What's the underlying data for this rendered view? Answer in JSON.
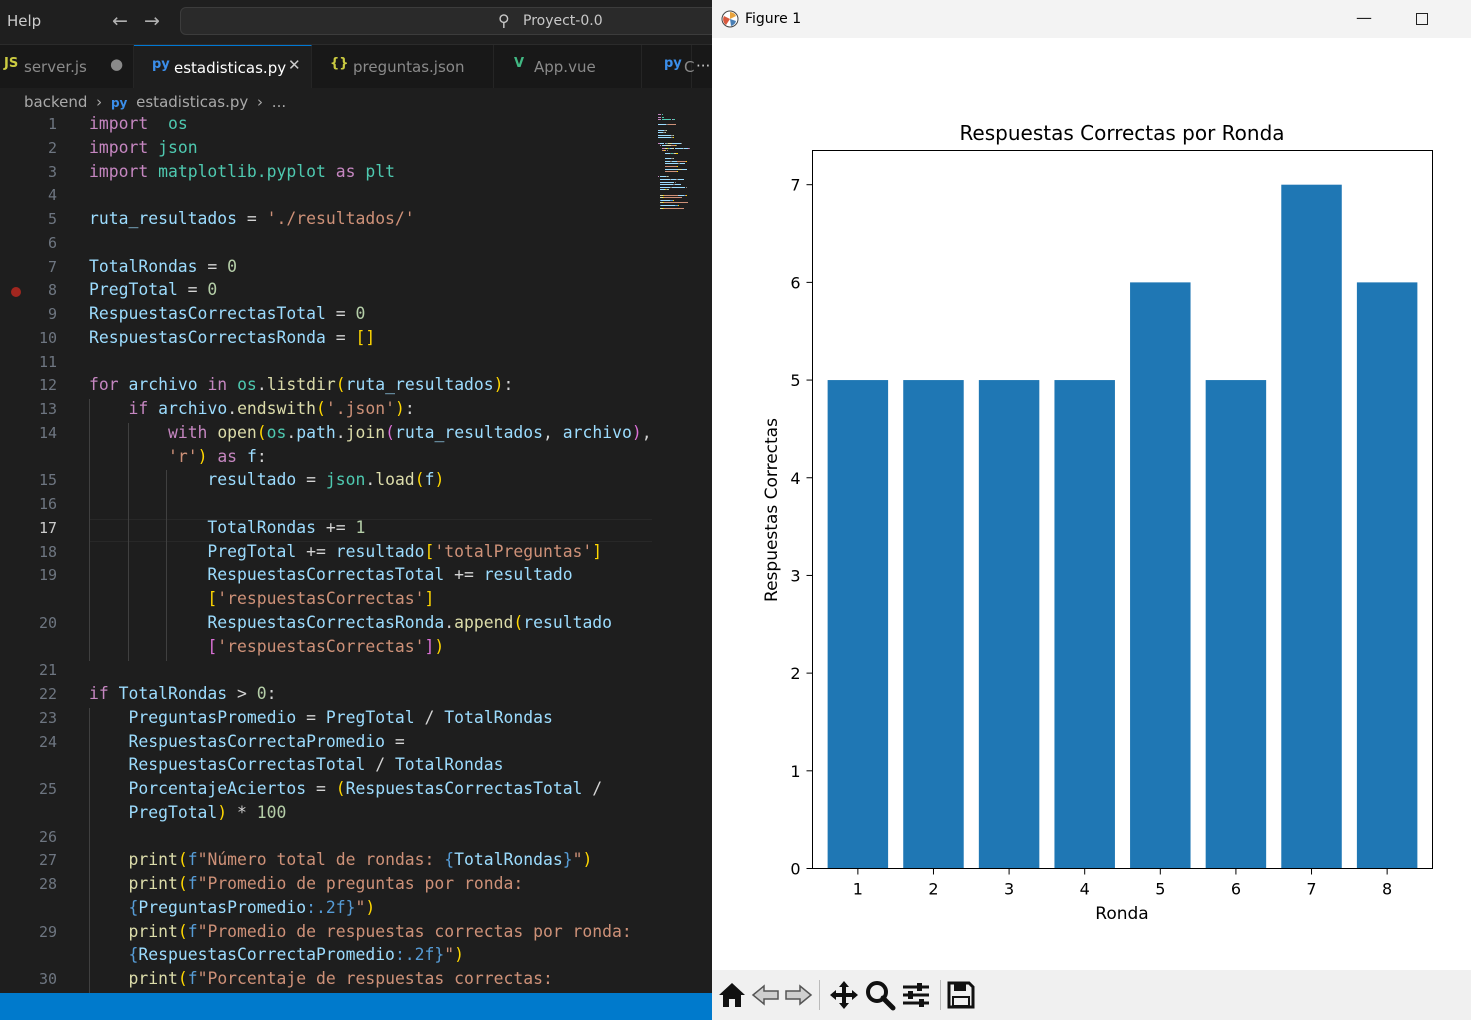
{
  "editor": {
    "menu_help": "Help",
    "back_icon": "arrow-left-icon",
    "forward_icon": "arrow-right-icon",
    "search_icon": "search-icon",
    "command_center_text": "Proyect-0.0",
    "tabs": [
      {
        "icon": "JS",
        "icon_color": "#cbcb41",
        "label": "server.js",
        "action": "●"
      },
      {
        "icon": "py",
        "icon_color": "#3b8eea",
        "label": "estadisticas.py",
        "action": "✕"
      },
      {
        "icon": "{}",
        "icon_color": "#cbcb41",
        "label": "preguntas.json"
      },
      {
        "icon": "V",
        "icon_color": "#41b883",
        "label": "App.vue"
      },
      {
        "icon": "py",
        "icon_color": "#3b8eea",
        "label": "C"
      }
    ],
    "tab_overflow": "···",
    "breadcrumb": {
      "folder": "backend",
      "sep": "›",
      "file": "estadisticas.py",
      "more": "..."
    },
    "lines": [
      {
        "n": "1",
        "y": 126,
        "ind": 0
      },
      {
        "n": "2",
        "y": 150,
        "ind": 0
      },
      {
        "n": "3",
        "y": 174,
        "ind": 0
      },
      {
        "n": "4",
        "y": 197,
        "ind": 0
      },
      {
        "n": "5",
        "y": 221,
        "ind": 0
      },
      {
        "n": "6",
        "y": 245,
        "ind": 0
      },
      {
        "n": "7",
        "y": 269,
        "ind": 0
      },
      {
        "n": "8",
        "y": 292,
        "ind": 0
      },
      {
        "n": "9",
        "y": 316,
        "ind": 0
      },
      {
        "n": "10",
        "y": 340,
        "ind": 0
      },
      {
        "n": "11",
        "y": 364,
        "ind": 0
      },
      {
        "n": "12",
        "y": 387,
        "ind": 0
      },
      {
        "n": "13",
        "y": 411,
        "ind": 1
      },
      {
        "n": "14",
        "y": 435,
        "ind": 2
      },
      {
        "n": "",
        "y": 459,
        "ind": 2
      },
      {
        "n": "15",
        "y": 482,
        "ind": 3
      },
      {
        "n": "16",
        "y": 506,
        "ind": 3
      },
      {
        "n": "17",
        "y": 530,
        "ind": 3
      },
      {
        "n": "18",
        "y": 554,
        "ind": 3
      },
      {
        "n": "19",
        "y": 577,
        "ind": 3
      },
      {
        "n": "",
        "y": 601,
        "ind": 3
      },
      {
        "n": "20",
        "y": 625,
        "ind": 3
      },
      {
        "n": "",
        "y": 649,
        "ind": 3
      },
      {
        "n": "21",
        "y": 672,
        "ind": 0
      },
      {
        "n": "22",
        "y": 696,
        "ind": 0
      },
      {
        "n": "23",
        "y": 720,
        "ind": 1
      },
      {
        "n": "24",
        "y": 744,
        "ind": 1
      },
      {
        "n": "",
        "y": 767,
        "ind": 1
      },
      {
        "n": "25",
        "y": 791,
        "ind": 1
      },
      {
        "n": "",
        "y": 815,
        "ind": 1
      },
      {
        "n": "26",
        "y": 839,
        "ind": 1
      },
      {
        "n": "27",
        "y": 862,
        "ind": 1
      },
      {
        "n": "28",
        "y": 886,
        "ind": 1
      },
      {
        "n": "",
        "y": 910,
        "ind": 1
      },
      {
        "n": "29",
        "y": 934,
        "ind": 1
      },
      {
        "n": "",
        "y": 957,
        "ind": 1
      },
      {
        "n": "30",
        "y": 981,
        "ind": 1
      }
    ],
    "code": [
      [
        [
          "kw",
          "import"
        ],
        [
          "",
          "  "
        ],
        [
          "mo",
          "os"
        ]
      ],
      [
        [
          "kw",
          "import"
        ],
        [
          "",
          " "
        ],
        [
          "mo",
          "json"
        ]
      ],
      [
        [
          "kw",
          "import"
        ],
        [
          "",
          " "
        ],
        [
          "mo",
          "matplotlib.pyplot"
        ],
        [
          "",
          " "
        ],
        [
          "kw",
          "as"
        ],
        [
          "",
          " "
        ],
        [
          "mo",
          "plt"
        ]
      ],
      [],
      [
        [
          "va",
          "ruta_resultados"
        ],
        [
          "",
          " = "
        ],
        [
          "st",
          "'./resultados/'"
        ]
      ],
      [],
      [
        [
          "va",
          "TotalRondas"
        ],
        [
          "",
          " = "
        ],
        [
          "nu",
          "0"
        ]
      ],
      [
        [
          "va",
          "PregTotal"
        ],
        [
          "",
          " = "
        ],
        [
          "nu",
          "0"
        ]
      ],
      [
        [
          "va",
          "RespuestasCorrectasTotal"
        ],
        [
          "",
          " = "
        ],
        [
          "nu",
          "0"
        ]
      ],
      [
        [
          "va",
          "RespuestasCorrectasRonda"
        ],
        [
          "",
          " = "
        ],
        [
          "p1",
          "[]"
        ]
      ],
      [],
      [
        [
          "kw",
          "for"
        ],
        [
          "",
          " "
        ],
        [
          "va",
          "archivo"
        ],
        [
          "",
          " "
        ],
        [
          "kw",
          "in"
        ],
        [
          "",
          " "
        ],
        [
          "mo",
          "os"
        ],
        [
          "",
          "."
        ],
        [
          "fn",
          "listdir"
        ],
        [
          "p1",
          "("
        ],
        [
          "va",
          "ruta_resultados"
        ],
        [
          "p1",
          ")"
        ],
        [
          "",
          ":"
        ]
      ],
      [
        [
          "",
          "    "
        ],
        [
          "kw",
          "if"
        ],
        [
          "",
          " "
        ],
        [
          "va",
          "archivo"
        ],
        [
          "",
          "."
        ],
        [
          "fn",
          "endswith"
        ],
        [
          "p1",
          "("
        ],
        [
          "st",
          "'.json'"
        ],
        [
          "p1",
          ")"
        ],
        [
          "",
          ":"
        ]
      ],
      [
        [
          "",
          "        "
        ],
        [
          "kw",
          "with"
        ],
        [
          "",
          " "
        ],
        [
          "fn",
          "open"
        ],
        [
          "p1",
          "("
        ],
        [
          "mo",
          "os"
        ],
        [
          "",
          "."
        ],
        [
          "va",
          "path"
        ],
        [
          "",
          "."
        ],
        [
          "fn",
          "join"
        ],
        [
          "p2",
          "("
        ],
        [
          "va",
          "ruta_resultados"
        ],
        [
          "",
          ", "
        ],
        [
          "va",
          "archivo"
        ],
        [
          "p2",
          ")"
        ],
        [
          "",
          ","
        ]
      ],
      [
        [
          "",
          "        "
        ],
        [
          "st",
          "'r'"
        ],
        [
          "p1",
          ")"
        ],
        [
          "",
          " "
        ],
        [
          "kw",
          "as"
        ],
        [
          "",
          " "
        ],
        [
          "va",
          "f"
        ],
        [
          "",
          ":"
        ]
      ],
      [
        [
          "",
          "            "
        ],
        [
          "va",
          "resultado"
        ],
        [
          "",
          " = "
        ],
        [
          "mo",
          "json"
        ],
        [
          "",
          "."
        ],
        [
          "fn",
          "load"
        ],
        [
          "p1",
          "("
        ],
        [
          "va",
          "f"
        ],
        [
          "p1",
          ")"
        ]
      ],
      [],
      [
        [
          "",
          "            "
        ],
        [
          "va",
          "TotalRondas"
        ],
        [
          "",
          " += "
        ],
        [
          "nu",
          "1"
        ]
      ],
      [
        [
          "",
          "            "
        ],
        [
          "va",
          "PregTotal"
        ],
        [
          "",
          " += "
        ],
        [
          "va",
          "resultado"
        ],
        [
          "p1",
          "["
        ],
        [
          "st",
          "'totalPreguntas'"
        ],
        [
          "p1",
          "]"
        ]
      ],
      [
        [
          "",
          "            "
        ],
        [
          "va",
          "RespuestasCorrectasTotal"
        ],
        [
          "",
          " += "
        ],
        [
          "va",
          "resultado"
        ]
      ],
      [
        [
          "",
          "            "
        ],
        [
          "p1",
          "["
        ],
        [
          "st",
          "'respuestasCorrectas'"
        ],
        [
          "p1",
          "]"
        ]
      ],
      [
        [
          "",
          "            "
        ],
        [
          "va",
          "RespuestasCorrectasRonda"
        ],
        [
          "",
          "."
        ],
        [
          "fn",
          "append"
        ],
        [
          "p1",
          "("
        ],
        [
          "va",
          "resultado"
        ]
      ],
      [
        [
          "",
          "            "
        ],
        [
          "p2",
          "["
        ],
        [
          "st",
          "'respuestasCorrectas'"
        ],
        [
          "p2",
          "]"
        ],
        [
          "p1",
          ")"
        ]
      ],
      [],
      [
        [
          "kw",
          "if"
        ],
        [
          "",
          " "
        ],
        [
          "va",
          "TotalRondas"
        ],
        [
          "",
          " > "
        ],
        [
          "nu",
          "0"
        ],
        [
          "",
          ":"
        ]
      ],
      [
        [
          "",
          "    "
        ],
        [
          "va",
          "PreguntasPromedio"
        ],
        [
          "",
          " = "
        ],
        [
          "va",
          "PregTotal"
        ],
        [
          "",
          " / "
        ],
        [
          "va",
          "TotalRondas"
        ]
      ],
      [
        [
          "",
          "    "
        ],
        [
          "va",
          "RespuestasCorrectaPromedio"
        ],
        [
          "",
          " ="
        ]
      ],
      [
        [
          "",
          "    "
        ],
        [
          "va",
          "RespuestasCorrectasTotal"
        ],
        [
          "",
          " / "
        ],
        [
          "va",
          "TotalRondas"
        ]
      ],
      [
        [
          "",
          "    "
        ],
        [
          "va",
          "PorcentajeAciertos"
        ],
        [
          "",
          " = "
        ],
        [
          "p1",
          "("
        ],
        [
          "va",
          "RespuestasCorrectasTotal"
        ],
        [
          "",
          " /"
        ]
      ],
      [
        [
          "",
          "    "
        ],
        [
          "va",
          "PregTotal"
        ],
        [
          "p1",
          ")"
        ],
        [
          "",
          " * "
        ],
        [
          "nu",
          "100"
        ]
      ],
      [],
      [
        [
          "",
          "    "
        ],
        [
          "fn",
          "print"
        ],
        [
          "p1",
          "("
        ],
        [
          "ky",
          "f"
        ],
        [
          "st",
          "\"Número total de rondas: "
        ],
        [
          "ky",
          "{"
        ],
        [
          "va",
          "TotalRondas"
        ],
        [
          "ky",
          "}"
        ],
        [
          "st",
          "\""
        ],
        [
          "p1",
          ")"
        ]
      ],
      [
        [
          "",
          "    "
        ],
        [
          "fn",
          "print"
        ],
        [
          "p1",
          "("
        ],
        [
          "ky",
          "f"
        ],
        [
          "st",
          "\"Promedio de preguntas por ronda:"
        ]
      ],
      [
        [
          "",
          "    "
        ],
        [
          "ky",
          "{"
        ],
        [
          "va",
          "PreguntasPromedio"
        ],
        [
          "ky",
          ":.2f}"
        ],
        [
          "st",
          "\""
        ],
        [
          "p1",
          ")"
        ]
      ],
      [
        [
          "",
          "    "
        ],
        [
          "fn",
          "print"
        ],
        [
          "p1",
          "("
        ],
        [
          "ky",
          "f"
        ],
        [
          "st",
          "\"Promedio de respuestas correctas por ronda:"
        ]
      ],
      [
        [
          "",
          "    "
        ],
        [
          "ky",
          "{"
        ],
        [
          "va",
          "RespuestasCorrectaPromedio"
        ],
        [
          "ky",
          ":.2f}"
        ],
        [
          "st",
          "\""
        ],
        [
          "p1",
          ")"
        ]
      ],
      [
        [
          "",
          "    "
        ],
        [
          "fn",
          "print"
        ],
        [
          "p1",
          "("
        ],
        [
          "ky",
          "f"
        ],
        [
          "st",
          "\"Porcentaje de respuestas correctas:"
        ]
      ]
    ]
  },
  "figure": {
    "window_title": "Figure 1",
    "minimize_glyph": "—",
    "toolbar_icons": [
      "home-icon",
      "back-icon",
      "forward-icon",
      "pan-icon",
      "zoom-icon",
      "configure-subplots-icon",
      "save-icon"
    ]
  },
  "chart_data": {
    "type": "bar",
    "title": "Respuestas Correctas por Ronda",
    "xlabel": "Ronda",
    "ylabel": "Respuestas Correctas",
    "categories": [
      "1",
      "2",
      "3",
      "4",
      "5",
      "6",
      "7",
      "8"
    ],
    "values": [
      5,
      5,
      5,
      5,
      6,
      5,
      7,
      6
    ],
    "yticks": [
      "0",
      "1",
      "2",
      "3",
      "4",
      "5",
      "6",
      "7"
    ],
    "ylim": [
      0,
      7.35
    ],
    "bar_color": "#1f77b4",
    "grid": false,
    "legend": false
  }
}
